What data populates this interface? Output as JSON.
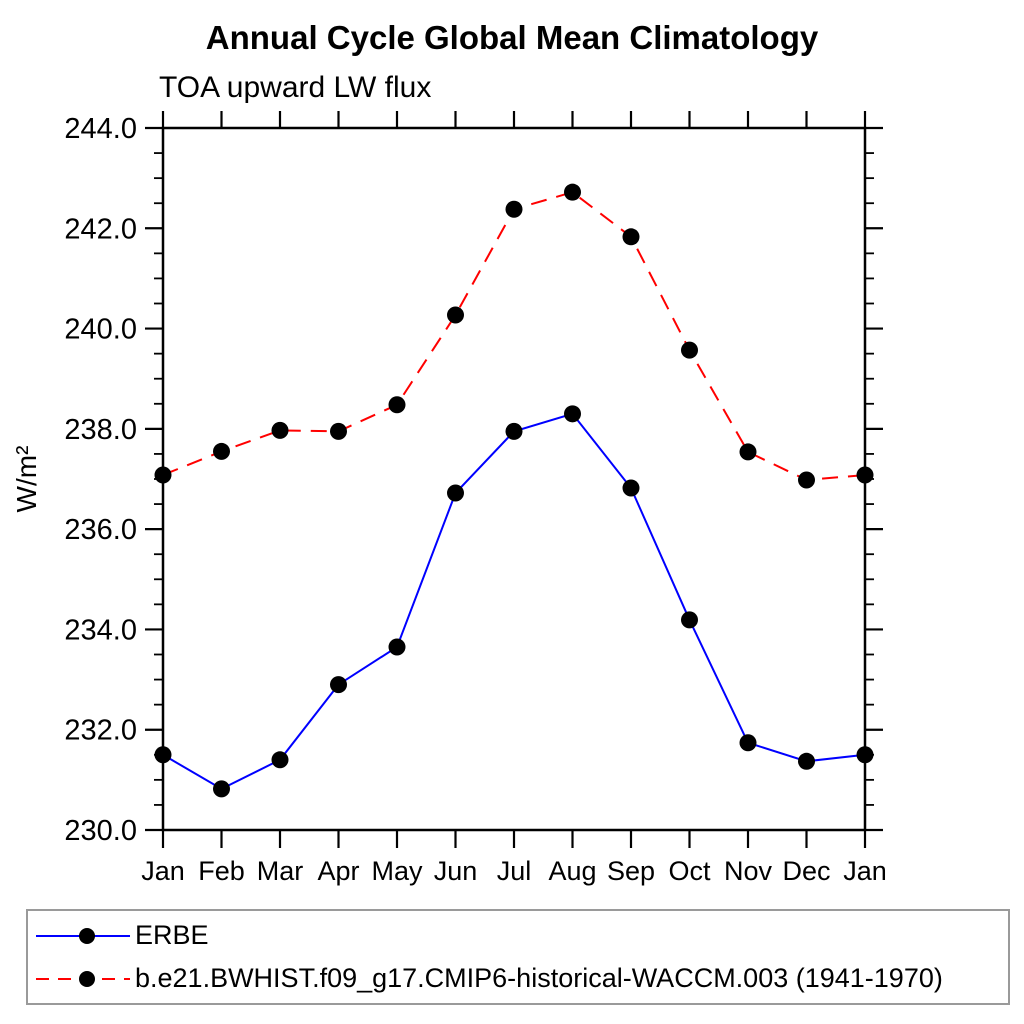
{
  "title": "Annual Cycle Global Mean Climatology",
  "subtitle": "TOA upward LW flux",
  "chart_data": {
    "type": "line",
    "categories": [
      "Jan",
      "Feb",
      "Mar",
      "Apr",
      "May",
      "Jun",
      "Jul",
      "Aug",
      "Sep",
      "Oct",
      "Nov",
      "Dec",
      "Jan"
    ],
    "xlabel": "",
    "ylabel": "W/m²",
    "ylim": [
      230.0,
      244.0
    ],
    "ytick_interval": 2.0,
    "yminor_interval": 0.5,
    "ytick_labels": [
      "230.0",
      "232.0",
      "234.0",
      "236.0",
      "238.0",
      "240.0",
      "242.0",
      "244.0"
    ],
    "grid": false,
    "legend_position": "bottom-left-box",
    "series": [
      {
        "name": "ERBE",
        "line_style": "solid",
        "color": "#0000ff",
        "marker": "filled-circle",
        "marker_color": "#000000",
        "values": [
          231.5,
          230.82,
          231.4,
          232.9,
          233.65,
          236.72,
          237.95,
          238.3,
          236.82,
          234.19,
          231.74,
          231.37,
          231.5
        ]
      },
      {
        "name": "b.e21.BWHIST.f09_g17.CMIP6-historical-WACCM.003 (1941-1970)",
        "line_style": "dashed",
        "color": "#ff0000",
        "marker": "filled-circle",
        "marker_color": "#000000",
        "values": [
          237.08,
          237.55,
          237.97,
          237.95,
          238.48,
          240.27,
          242.38,
          242.72,
          241.83,
          239.57,
          237.54,
          236.98,
          237.08
        ]
      }
    ],
    "axis_color": "#000000"
  }
}
